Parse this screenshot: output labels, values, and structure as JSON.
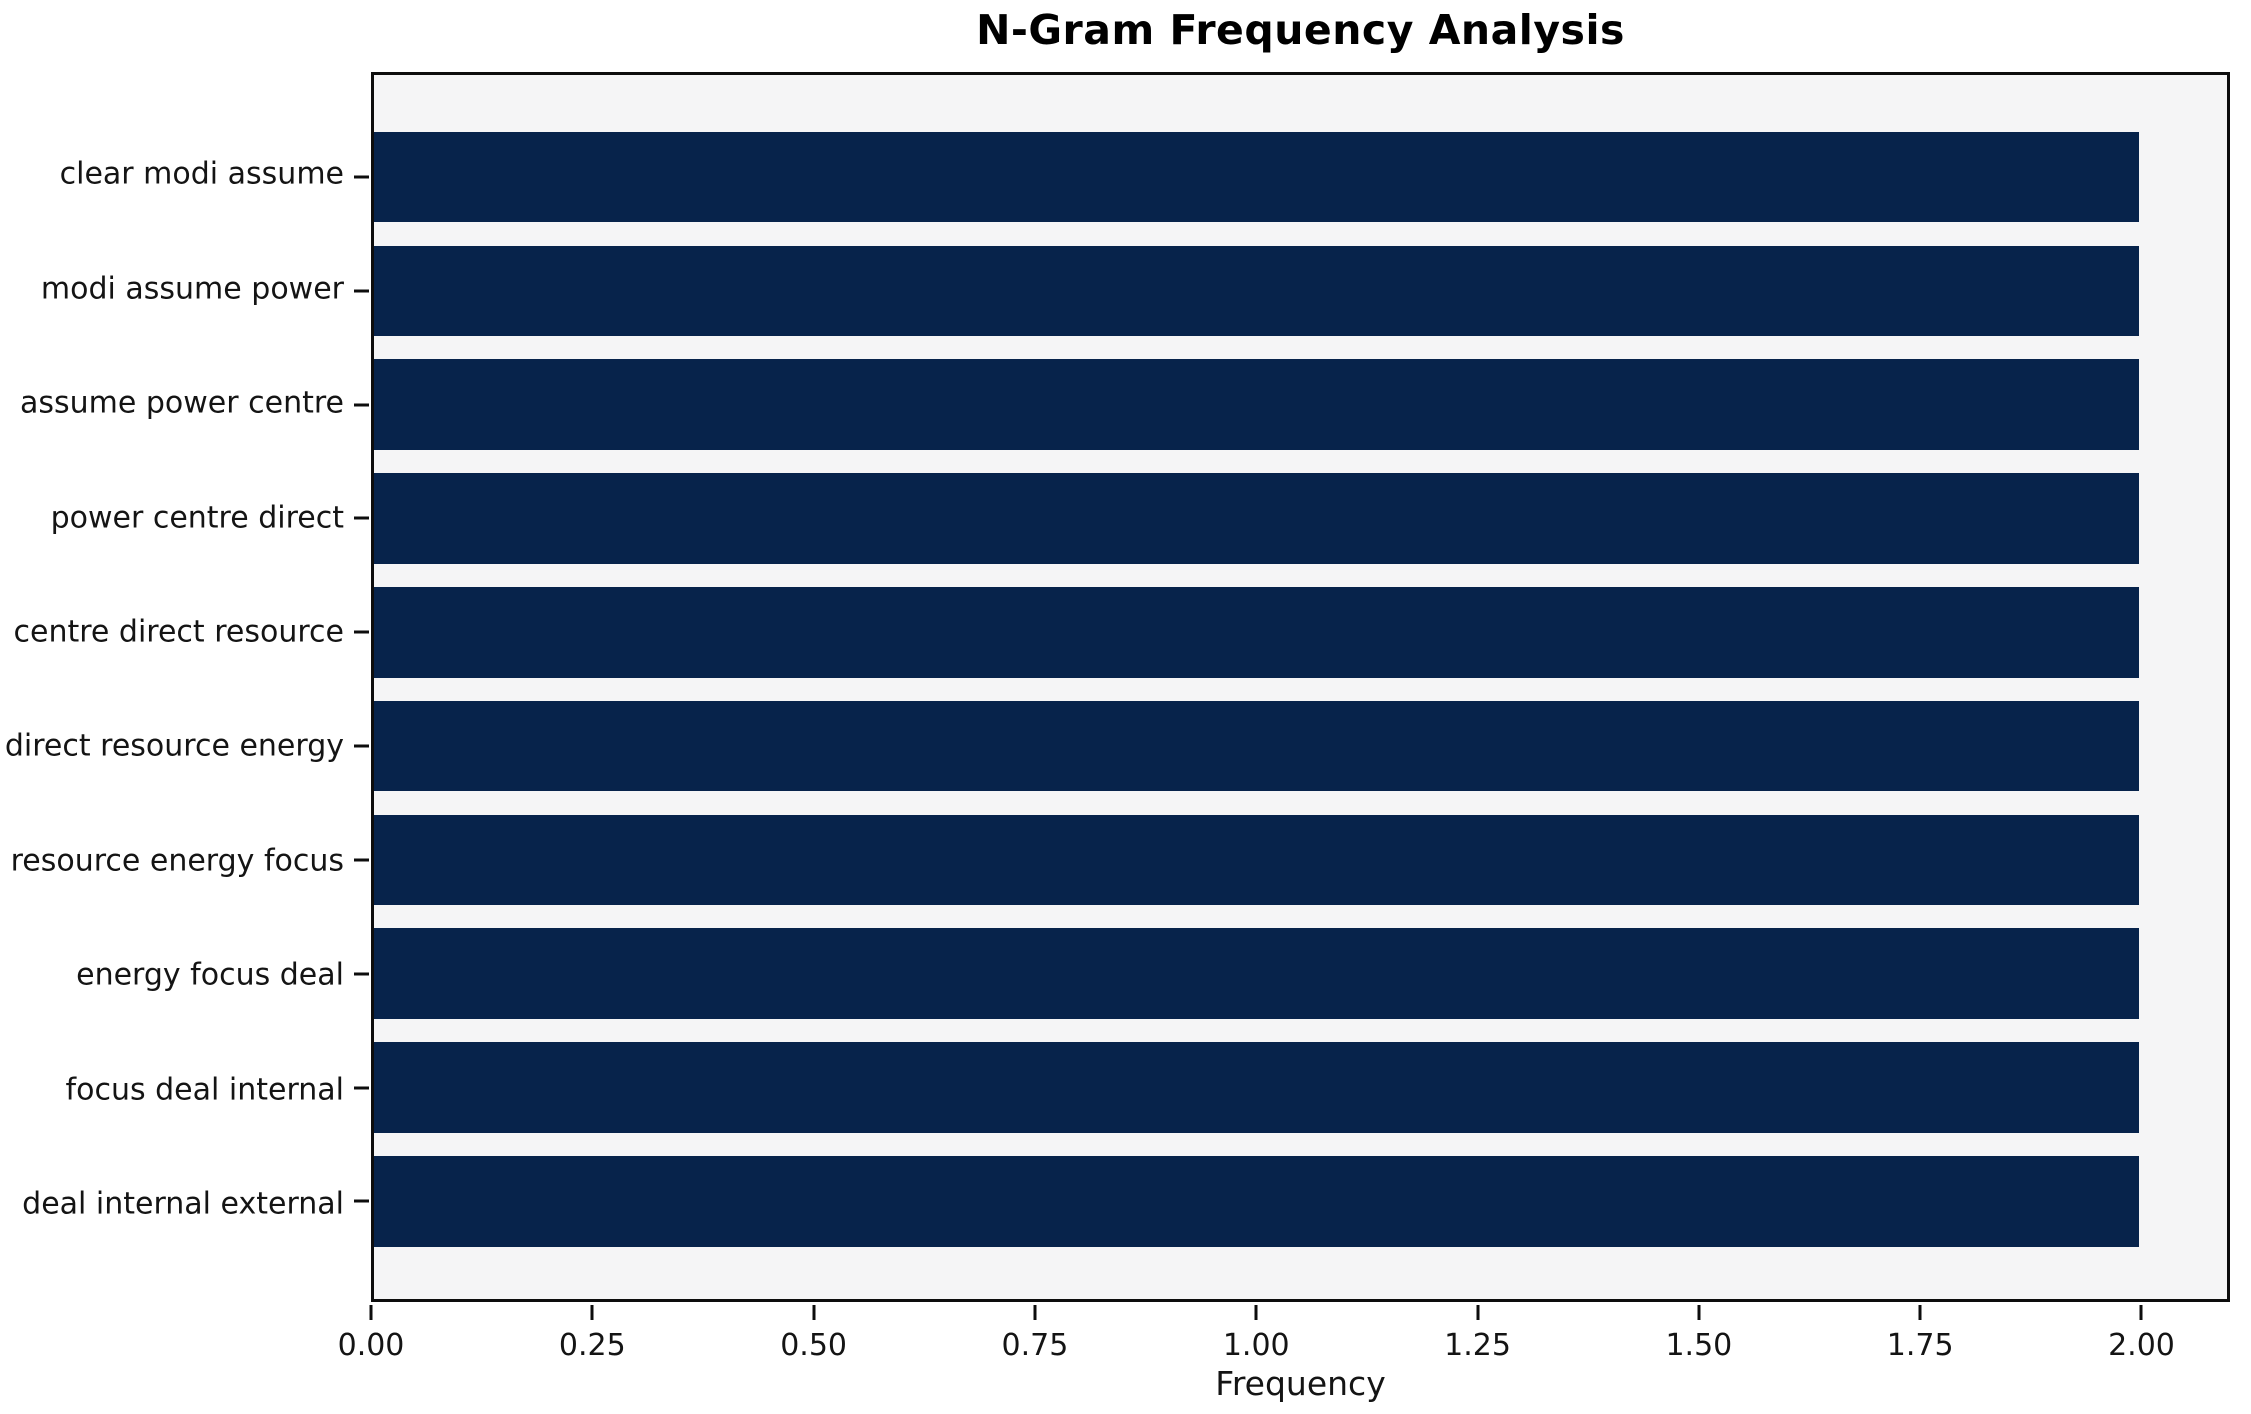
{
  "chart_data": {
    "type": "bar",
    "orientation": "horizontal",
    "title": "N-Gram Frequency Analysis",
    "xlabel": "Frequency",
    "ylabel": "",
    "categories": [
      "clear modi assume",
      "modi assume power",
      "assume power centre",
      "power centre direct",
      "centre direct resource",
      "direct resource energy",
      "resource energy focus",
      "energy focus deal",
      "focus deal internal",
      "deal internal external"
    ],
    "values": [
      2,
      2,
      2,
      2,
      2,
      2,
      2,
      2,
      2,
      2
    ],
    "xlim": [
      0,
      2.1
    ],
    "xticks": [
      {
        "value": 0.0,
        "label": "0.00"
      },
      {
        "value": 0.25,
        "label": "0.25"
      },
      {
        "value": 0.5,
        "label": "0.50"
      },
      {
        "value": 0.75,
        "label": "0.75"
      },
      {
        "value": 1.0,
        "label": "1.00"
      },
      {
        "value": 1.25,
        "label": "1.25"
      },
      {
        "value": 1.5,
        "label": "1.50"
      },
      {
        "value": 1.75,
        "label": "1.75"
      },
      {
        "value": 2.0,
        "label": "2.00"
      }
    ],
    "grid": false,
    "legend": null,
    "colors": {
      "bar": "#07234b",
      "plot_background": "#f5f5f6",
      "figure_background": "#ffffff",
      "spine": "#0d0d0d",
      "text": "#141414"
    },
    "layout": {
      "top_pad_pct": 4.63,
      "bar_height_pct": 7.4,
      "bar_gap_pct": 1.9
    }
  }
}
